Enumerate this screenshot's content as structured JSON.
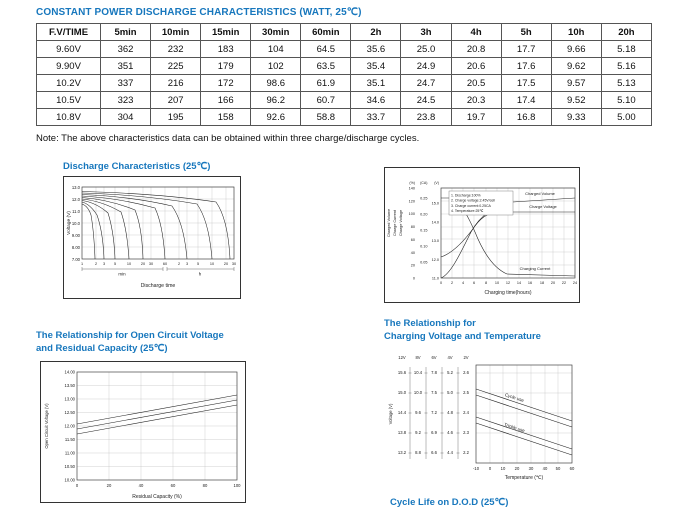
{
  "page": {
    "title": "CONSTANT POWER DISCHARGE CHARACTERISTICS (WATT, 25℃)",
    "note": "Note: The above characteristics data can be obtained within three charge/discharge cycles."
  },
  "table": {
    "headers": [
      "F.V/TIME",
      "5min",
      "10min",
      "15min",
      "30min",
      "60min",
      "2h",
      "3h",
      "4h",
      "5h",
      "10h",
      "20h"
    ],
    "rows": [
      [
        "9.60V",
        "362",
        "232",
        "183",
        "104",
        "64.5",
        "35.6",
        "25.0",
        "20.8",
        "17.7",
        "9.66",
        "5.18"
      ],
      [
        "9.90V",
        "351",
        "225",
        "179",
        "102",
        "63.5",
        "35.4",
        "24.9",
        "20.6",
        "17.6",
        "9.62",
        "5.16"
      ],
      [
        "10.2V",
        "337",
        "216",
        "172",
        "98.6",
        "61.9",
        "35.1",
        "24.7",
        "20.5",
        "17.5",
        "9.57",
        "5.13"
      ],
      [
        "10.5V",
        "323",
        "207",
        "166",
        "96.2",
        "60.7",
        "34.6",
        "24.5",
        "20.3",
        "17.4",
        "9.52",
        "5.10"
      ],
      [
        "10.8V",
        "304",
        "195",
        "158",
        "92.6",
        "58.8",
        "33.7",
        "23.8",
        "19.7",
        "16.8",
        "9.33",
        "5.00"
      ]
    ]
  },
  "sections": {
    "discharge_title": "Discharge Characteristics (25℃)",
    "charging_temp_title_line1": "The Relationship for",
    "charging_temp_title_line2": "Charging Voltage and Temperature",
    "ocv_title_line1": "The Relationship for Open Circuit Voltage",
    "ocv_title_line2": "and Residual Capacity (25℃)",
    "cycle_life_title": "Cycle Life on D.O.D (25℃)"
  },
  "colors": {
    "accent_blue": "#1777bd",
    "table_border": "#555555",
    "curve_black": "#222222"
  },
  "chart_data": [
    {
      "id": "discharge-characteristics",
      "type": "line",
      "title": "Discharge Characteristics (25℃)",
      "ylabel": "Voltage (V)",
      "xlabel": "Discharge time",
      "x_scale": "log",
      "ylim": [
        7.0,
        13.0
      ],
      "yticks": [
        "13.0",
        "12.0",
        "11.0",
        "10.0",
        "9.00",
        "8.00",
        "7.00"
      ],
      "xticks_min": [
        "1",
        "2",
        "3",
        "5",
        "10",
        "20",
        "30",
        "60"
      ],
      "xticks_hour": [
        "2",
        "3",
        "5",
        "10",
        "20",
        "30"
      ],
      "x_unit_min": "min",
      "x_unit_hour": "h",
      "series": [
        {
          "name": "discharge-curve-1",
          "end_time_min": 1.7,
          "start_voltage": 11.5,
          "end_voltage": 7.0
        },
        {
          "name": "discharge-curve-2",
          "end_time_min": 3,
          "start_voltage": 11.7,
          "end_voltage": 7.0
        },
        {
          "name": "discharge-curve-3",
          "end_time_min": 5,
          "start_voltage": 11.85,
          "end_voltage": 7.0
        },
        {
          "name": "discharge-curve-4",
          "end_time_min": 10,
          "start_voltage": 12.0,
          "end_voltage": 7.0
        },
        {
          "name": "discharge-curve-5",
          "end_time_min": 20,
          "start_voltage": 12.15,
          "end_voltage": 7.0
        },
        {
          "name": "discharge-curve-6",
          "end_time_min": 60,
          "start_voltage": 12.3,
          "end_voltage": 7.0
        },
        {
          "name": "discharge-curve-7",
          "end_time_min": 180,
          "start_voltage": 12.45,
          "end_voltage": 7.0
        },
        {
          "name": "discharge-curve-8",
          "end_time_min": 600,
          "start_voltage": 12.6,
          "end_voltage": 7.0
        },
        {
          "name": "discharge-curve-9",
          "end_time_min": 1200,
          "start_voltage": 12.7,
          "end_voltage": 7.0
        }
      ]
    },
    {
      "id": "charging-characteristics",
      "type": "line",
      "xlabel": "Charging time(hours)",
      "origin_tick": "0",
      "xticks": [
        "2",
        "4",
        "6",
        "8",
        "10",
        "12",
        "14",
        "16",
        "18",
        "20",
        "22",
        "24"
      ],
      "axes_left": [
        {
          "label": "Charged Volume",
          "unit": "(%)",
          "ticks": [
            "140",
            "120",
            "100",
            "80",
            "60",
            "40",
            "20",
            "0"
          ]
        },
        {
          "label": "Charge Current",
          "unit": "(CA)",
          "ticks": [
            "0.25",
            "0.20",
            "0.15",
            "0.10",
            "0.05"
          ]
        },
        {
          "label": "Charge Voltage",
          "unit": "(V)",
          "ticks": [
            "15.0",
            "14.0",
            "13.0",
            "12.0",
            "11.0"
          ]
        }
      ],
      "test_conditions": [
        "1. Discharge:100%",
        "2. Charge voltage:2.45V/cell",
        "3. Charge current:0.25CA",
        "4. Temperature:25℃"
      ],
      "curve_labels": [
        "Charged Volume",
        "Charge Voltage",
        "Charging Current"
      ],
      "series": [
        {
          "name": "Charged Volume (%)",
          "x_hours": [
            0,
            2,
            4,
            6,
            8,
            12,
            16,
            20,
            24
          ],
          "values": [
            0,
            35,
            70,
            95,
            108,
            116,
            120,
            122,
            123
          ]
        },
        {
          "name": "Charge Voltage (V)",
          "x_hours": [
            0,
            2,
            4,
            6,
            8,
            12,
            16,
            20,
            24
          ],
          "values": [
            12.2,
            12.9,
            13.8,
            14.5,
            14.7,
            14.7,
            14.7,
            14.7,
            14.7
          ]
        },
        {
          "name": "Charging Current (CA)",
          "x_hours": [
            0,
            2,
            4,
            6,
            8,
            12,
            16,
            20,
            24
          ],
          "values": [
            0.25,
            0.25,
            0.19,
            0.11,
            0.05,
            0.02,
            0.01,
            0.01,
            0.01
          ]
        }
      ]
    },
    {
      "id": "open-circuit-voltage-vs-residual-capacity",
      "type": "line",
      "title": "The Relationship for Open Circuit Voltage and Residual Capacity (25℃)",
      "ylabel": "Open Circuit Voltage (V)",
      "xlabel": "Residual Capacity (%)",
      "yticks": [
        "14.00",
        "13.50",
        "13.00",
        "12.50",
        "12.00",
        "11.50",
        "11.00",
        "10.50",
        "10.00"
      ],
      "xticks": [
        "0",
        "20",
        "40",
        "60",
        "80",
        "100"
      ],
      "series": [
        {
          "name": "upper",
          "x": [
            0,
            100
          ],
          "y": [
            12.1,
            13.2
          ]
        },
        {
          "name": "middle",
          "x": [
            0,
            100
          ],
          "y": [
            11.9,
            13.0
          ]
        },
        {
          "name": "lower",
          "x": [
            0,
            100
          ],
          "y": [
            11.7,
            12.8
          ]
        }
      ]
    },
    {
      "id": "charging-voltage-vs-temperature",
      "type": "line",
      "title": "The Relationship for Charging Voltage and Temperature",
      "ylabel": "Voltage (V)",
      "xlabel": "Temperature (℃)",
      "scale_headers": [
        "12V",
        "8V",
        "6V",
        "4V",
        "2V"
      ],
      "scale_rows": [
        [
          "15.6",
          "10.4",
          "7.8",
          "5.2",
          "2.6"
        ],
        [
          "15.0",
          "10.0",
          "7.5",
          "5.0",
          "2.5"
        ],
        [
          "14.4",
          "9.6",
          "7.2",
          "4.8",
          "2.4"
        ],
        [
          "13.8",
          "9.2",
          "6.9",
          "4.6",
          "2.3"
        ],
        [
          "13.2",
          "8.8",
          "6.6",
          "4.4",
          "2.2"
        ]
      ],
      "xticks": [
        "-10",
        "0",
        "10",
        "20",
        "30",
        "40",
        "50",
        "60"
      ],
      "series": [
        {
          "name": "Cycle use",
          "x": [
            -10,
            60
          ],
          "y_12v": [
            15.1,
            14.0
          ]
        },
        {
          "name": "Trickle use",
          "x": [
            -10,
            60
          ],
          "y_12v": [
            14.2,
            13.3
          ]
        }
      ]
    }
  ]
}
